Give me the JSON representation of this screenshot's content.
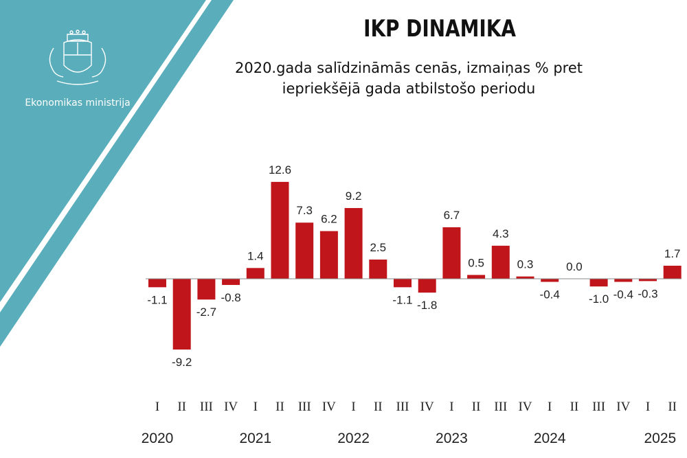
{
  "header": {
    "title": "IKP DINAMIKA",
    "subtitle_line1": "2020.gada salīdzināmās cenās, izmaiņas % pret",
    "subtitle_line2": "iepriekšējā gada atbilstošo periodu"
  },
  "brand": {
    "name": "Ekonomikas ministrija",
    "emblem": "latvia-coat-of-arms-icon"
  },
  "colors": {
    "accent": "#5aaebb",
    "bar": "#c0151b",
    "text": "#222222"
  },
  "chart_data": {
    "type": "bar",
    "categories": [
      "I",
      "II",
      "III",
      "IV",
      "I",
      "II",
      "III",
      "IV",
      "I",
      "II",
      "III",
      "IV",
      "I",
      "II",
      "III",
      "IV",
      "I",
      "II",
      "III",
      "IV",
      "I",
      "II"
    ],
    "years": [
      "2020",
      "2021",
      "2022",
      "2023",
      "2024",
      "2025"
    ],
    "series": [
      {
        "values": [
          -1.1,
          -9.2,
          -2.7,
          -0.8,
          1.4,
          12.6,
          7.3,
          6.2,
          9.2,
          2.5,
          -1.1,
          -1.8,
          6.7,
          0.5,
          4.3,
          0.3,
          -0.4,
          0.0,
          -1.0,
          -0.4,
          -0.3,
          1.7
        ]
      }
    ],
    "value_labels": [
      "-1.1",
      "-9.2",
      "-2.7",
      "-0.8",
      "1.4",
      "12.6",
      "7.3",
      "6.2",
      "9.2",
      "2.5",
      "-1.1",
      "-1.8",
      "6.7",
      "0.5",
      "4.3",
      "0.3",
      "-0.4",
      "0.0",
      "-1.0",
      "-0.4",
      "-0.3",
      "1.7"
    ],
    "grid": false
  }
}
